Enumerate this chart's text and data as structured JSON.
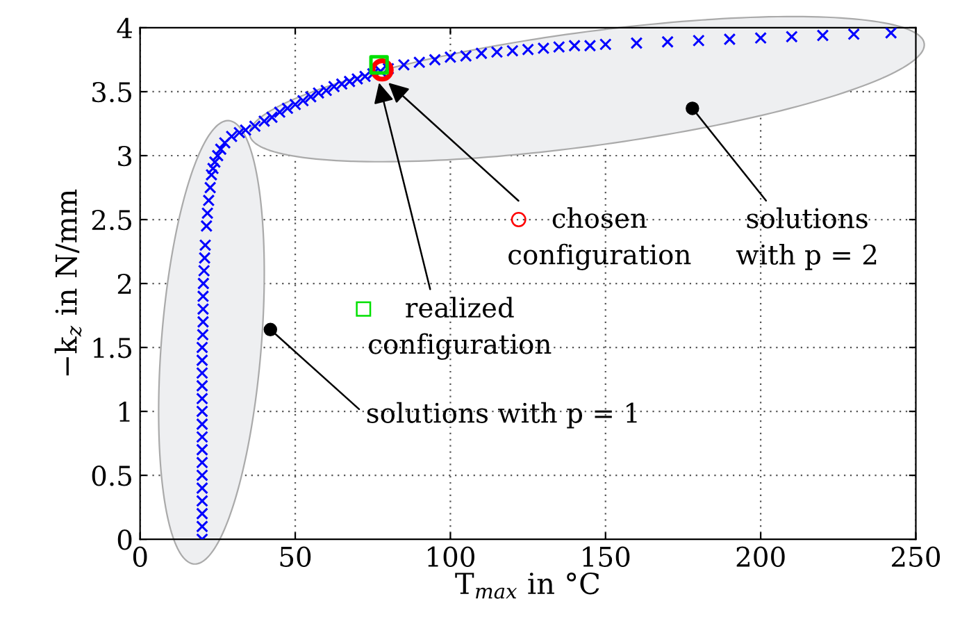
{
  "chart_data": {
    "type": "scatter",
    "xlabel": "T$_{max}$ in °C",
    "ylabel": "−k$_{z}$ in N/mm",
    "xlim": [
      0,
      250
    ],
    "ylim": [
      0,
      4
    ],
    "xticks": [
      0,
      50,
      100,
      150,
      200,
      250
    ],
    "yticks": [
      0,
      0.5,
      1,
      1.5,
      2,
      2.5,
      3,
      3.5,
      4
    ],
    "grid": true,
    "series": [
      {
        "color": "#0000ff",
        "marker": "cross",
        "x": [
          20,
          20,
          20,
          20,
          20,
          20,
          20,
          20,
          20,
          20,
          20,
          20,
          20,
          20,
          20,
          20,
          20.2,
          20.3,
          20.3,
          20.3,
          20.4,
          20.6,
          20.8,
          21,
          21.4,
          21.7,
          22.1,
          22.6,
          23,
          23.5,
          24.1,
          25,
          26,
          27.3,
          29.5,
          32,
          34,
          37,
          40,
          42.5,
          45,
          47.5,
          50,
          52.5,
          55,
          57.5,
          60,
          62.5,
          65,
          67.5,
          70,
          72.5,
          75,
          77.5,
          80,
          85,
          90,
          95,
          100,
          105,
          110,
          115,
          120,
          125,
          130,
          135,
          140,
          145,
          150,
          160,
          170,
          180,
          190,
          200,
          210,
          220,
          230,
          242
        ],
        "values": [
          0,
          0.1,
          0.2,
          0.3,
          0.4,
          0.5,
          0.6,
          0.7,
          0.8,
          0.9,
          1,
          1.1,
          1.2,
          1.3,
          1.4,
          1.5,
          1.6,
          1.7,
          1.8,
          1.9,
          2,
          2.1,
          2.2,
          2.3,
          2.45,
          2.55,
          2.65,
          2.75,
          2.85,
          2.9,
          2.95,
          3,
          3.05,
          3.1,
          3.15,
          3.18,
          3.2,
          3.23,
          3.27,
          3.3,
          3.34,
          3.37,
          3.4,
          3.43,
          3.46,
          3.49,
          3.51,
          3.54,
          3.56,
          3.58,
          3.6,
          3.62,
          3.64,
          3.66,
          3.68,
          3.71,
          3.73,
          3.75,
          3.77,
          3.78,
          3.8,
          3.81,
          3.82,
          3.83,
          3.84,
          3.85,
          3.86,
          3.86,
          3.87,
          3.88,
          3.89,
          3.9,
          3.91,
          3.92,
          3.93,
          3.94,
          3.95,
          3.96
        ]
      },
      {
        "color": "#ff0000",
        "marker": "circle",
        "x": [
          78
        ],
        "values": [
          3.67
        ]
      },
      {
        "color": "#00e000",
        "marker": "square",
        "x": [
          77
        ],
        "values": [
          3.71
        ]
      }
    ],
    "annotations": [
      {
        "text": "chosen\nconfiguration",
        "x": 80,
        "y": 3.57
      },
      {
        "text": "realized\nconfiguration",
        "x": 77,
        "y": 3.57
      },
      {
        "text": "solutions with p = 1",
        "x": 42,
        "y": 1.64
      },
      {
        "text": "solutions\nwith p = 2",
        "x": 178,
        "y": 3.37
      }
    ]
  }
}
